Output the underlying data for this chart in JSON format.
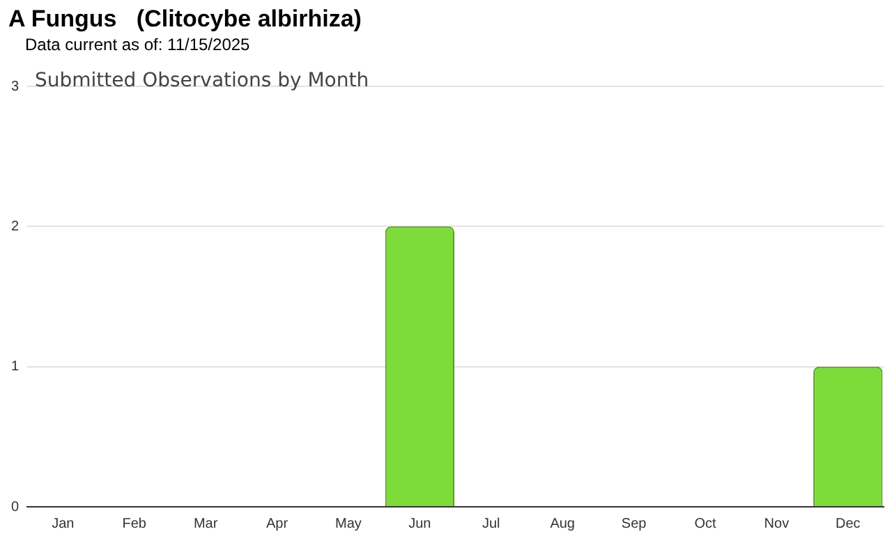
{
  "chart_data": {
    "type": "bar",
    "title": "A Fungus   (Clitocybe albirhiza)",
    "subtitle": "Data current as of: 11/15/2025",
    "annotations": [
      "Submitted Observations by Month"
    ],
    "categories": [
      "Jan",
      "Feb",
      "Mar",
      "Apr",
      "May",
      "Jun",
      "Jul",
      "Aug",
      "Sep",
      "Oct",
      "Nov",
      "Dec"
    ],
    "values": [
      0,
      0,
      0,
      0,
      0,
      2,
      0,
      0,
      0,
      0,
      0,
      1
    ],
    "color": "#7ddc3a",
    "ylim": [
      0,
      3
    ],
    "yticks": [
      0,
      1,
      2,
      3
    ],
    "grid": "y",
    "legend": false
  }
}
